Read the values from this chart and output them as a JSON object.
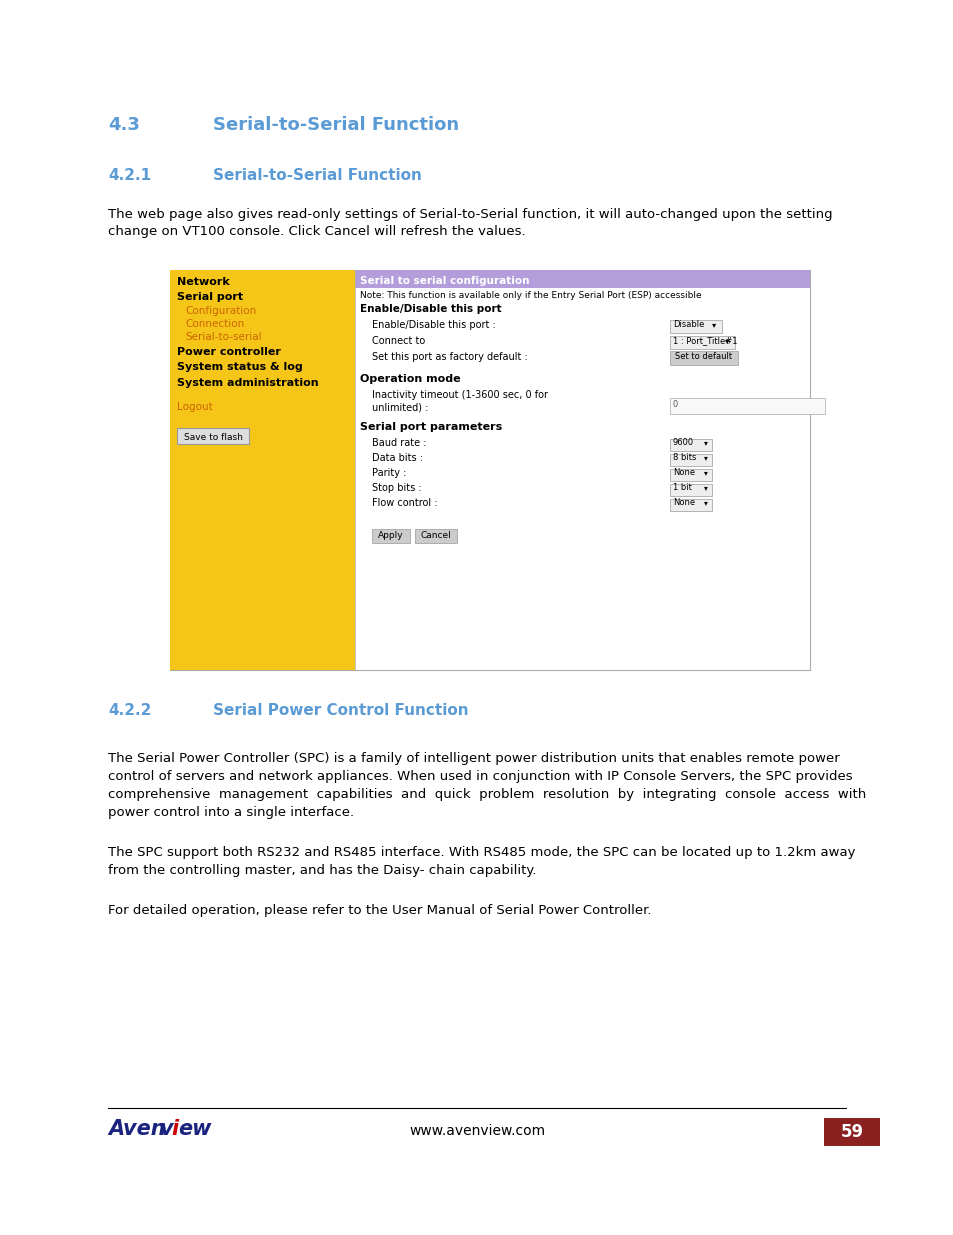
{
  "page_bg": "#ffffff",
  "heading1_text": "4.3",
  "heading1_title": "Serial-to-Serial Function",
  "heading2_text": "4.2.1",
  "heading2_title": "Serial-to-Serial Function",
  "heading_color": "#5b9bd5",
  "body_para1_l1": "The web page also gives read-only settings of Serial-to-Serial function, it will auto-changed upon the setting",
  "body_para1_l2": "change on VT100 console. Click Cancel will refresh the values.",
  "heading3_text": "4.2.2",
  "heading3_title": "Serial Power Control Function",
  "body_para2_l1": "The Serial Power Controller (SPC) is a family of intelligent power distribution units that enables remote power",
  "body_para2_l2": "control of servers and network appliances. When used in conjunction with IP Console Servers, the SPC provides",
  "body_para2_l3": "comprehensive  management  capabilities  and  quick  problem  resolution  by  integrating  console  access  with",
  "body_para2_l4": "power control into a single interface.",
  "body_para3_l1": "The SPC support both RS232 and RS485 interface. With RS485 mode, the SPC can be located up to 1.2km away",
  "body_para3_l2": "from the controlling master, and has the Daisy- chain capability.",
  "body_para4": "For detailed operation, please refer to the User Manual of Serial Power Controller.",
  "footer_url": "www.avenview.com",
  "footer_page": "59",
  "footer_box_color": "#8b2020",
  "footer_text_color": "#ffffff",
  "avenview_color": "#1a237e",
  "avenview_red": "#cc0000",
  "sidebar_bg": "#f5c518",
  "config_header_bg": "#b39ddb",
  "nav_link_color": "#cc6600",
  "body_text_color": "#000000",
  "body_font_size": 9.5,
  "screenshot_font": "DejaVu Sans",
  "screenshot_font_size": 7.5
}
